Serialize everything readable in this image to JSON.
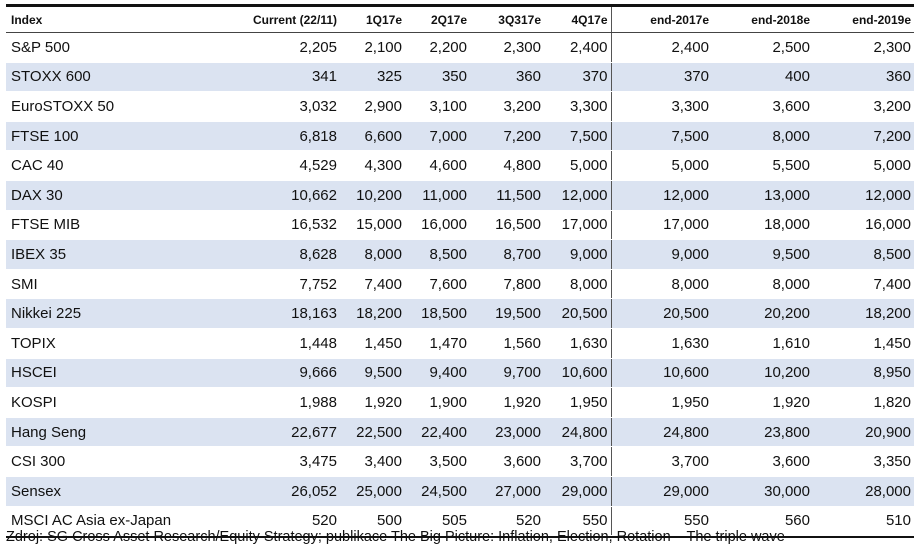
{
  "table": {
    "headers": [
      "Index",
      "Current (22/11)",
      "1Q17e",
      "2Q17e",
      "3Q317e",
      "4Q17e",
      "end-2017e",
      "end-2018e",
      "end-2019e"
    ],
    "rows": [
      [
        "S&P 500",
        "2,205",
        "2,100",
        "2,200",
        "2,300",
        "2,400",
        "2,400",
        "2,500",
        "2,300"
      ],
      [
        "STOXX 600",
        "341",
        "325",
        "350",
        "360",
        "370",
        "370",
        "400",
        "360"
      ],
      [
        "EuroSTOXX 50",
        "3,032",
        "2,900",
        "3,100",
        "3,200",
        "3,300",
        "3,300",
        "3,600",
        "3,200"
      ],
      [
        "FTSE 100",
        "6,818",
        "6,600",
        "7,000",
        "7,200",
        "7,500",
        "7,500",
        "8,000",
        "7,200"
      ],
      [
        "CAC 40",
        "4,529",
        "4,300",
        "4,600",
        "4,800",
        "5,000",
        "5,000",
        "5,500",
        "5,000"
      ],
      [
        "DAX 30",
        "10,662",
        "10,200",
        "11,000",
        "11,500",
        "12,000",
        "12,000",
        "13,000",
        "12,000"
      ],
      [
        "FTSE MIB",
        "16,532",
        "15,000",
        "16,000",
        "16,500",
        "17,000",
        "17,000",
        "18,000",
        "16,000"
      ],
      [
        "IBEX 35",
        "8,628",
        "8,000",
        "8,500",
        "8,700",
        "9,000",
        "9,000",
        "9,500",
        "8,500"
      ],
      [
        "SMI",
        "7,752",
        "7,400",
        "7,600",
        "7,800",
        "8,000",
        "8,000",
        "8,000",
        "7,400"
      ],
      [
        "Nikkei 225",
        "18,163",
        "18,200",
        "18,500",
        "19,500",
        "20,500",
        "20,500",
        "20,200",
        "18,200"
      ],
      [
        "TOPIX",
        "1,448",
        "1,450",
        "1,470",
        "1,560",
        "1,630",
        "1,630",
        "1,610",
        "1,450"
      ],
      [
        "HSCEI",
        "9,666",
        "9,500",
        "9,400",
        "9,700",
        "10,600",
        "10,600",
        "10,200",
        "8,950"
      ],
      [
        "KOSPI",
        "1,988",
        "1,920",
        "1,900",
        "1,920",
        "1,950",
        "1,950",
        "1,920",
        "1,820"
      ],
      [
        "Hang Seng",
        "22,677",
        "22,500",
        "22,400",
        "23,000",
        "24,800",
        "24,800",
        "23,800",
        "20,900"
      ],
      [
        "CSI 300",
        "3,475",
        "3,400",
        "3,500",
        "3,600",
        "3,700",
        "3,700",
        "3,600",
        "3,350"
      ],
      [
        "Sensex",
        "26,052",
        "25,000",
        "24,500",
        "27,000",
        "29,000",
        "29,000",
        "30,000",
        "28,000"
      ],
      [
        "MSCI AC Asia ex-Japan",
        "520",
        "500",
        "505",
        "520",
        "550",
        "550",
        "560",
        "510"
      ]
    ]
  },
  "source": "Zdroj: SG Cross Asset Research/Equity Strategy; publikace The Big Picture: Inflation, Election, Rotation – The triple wave",
  "colors": {
    "shade": "#dbe3f1",
    "rule": "#111111"
  }
}
